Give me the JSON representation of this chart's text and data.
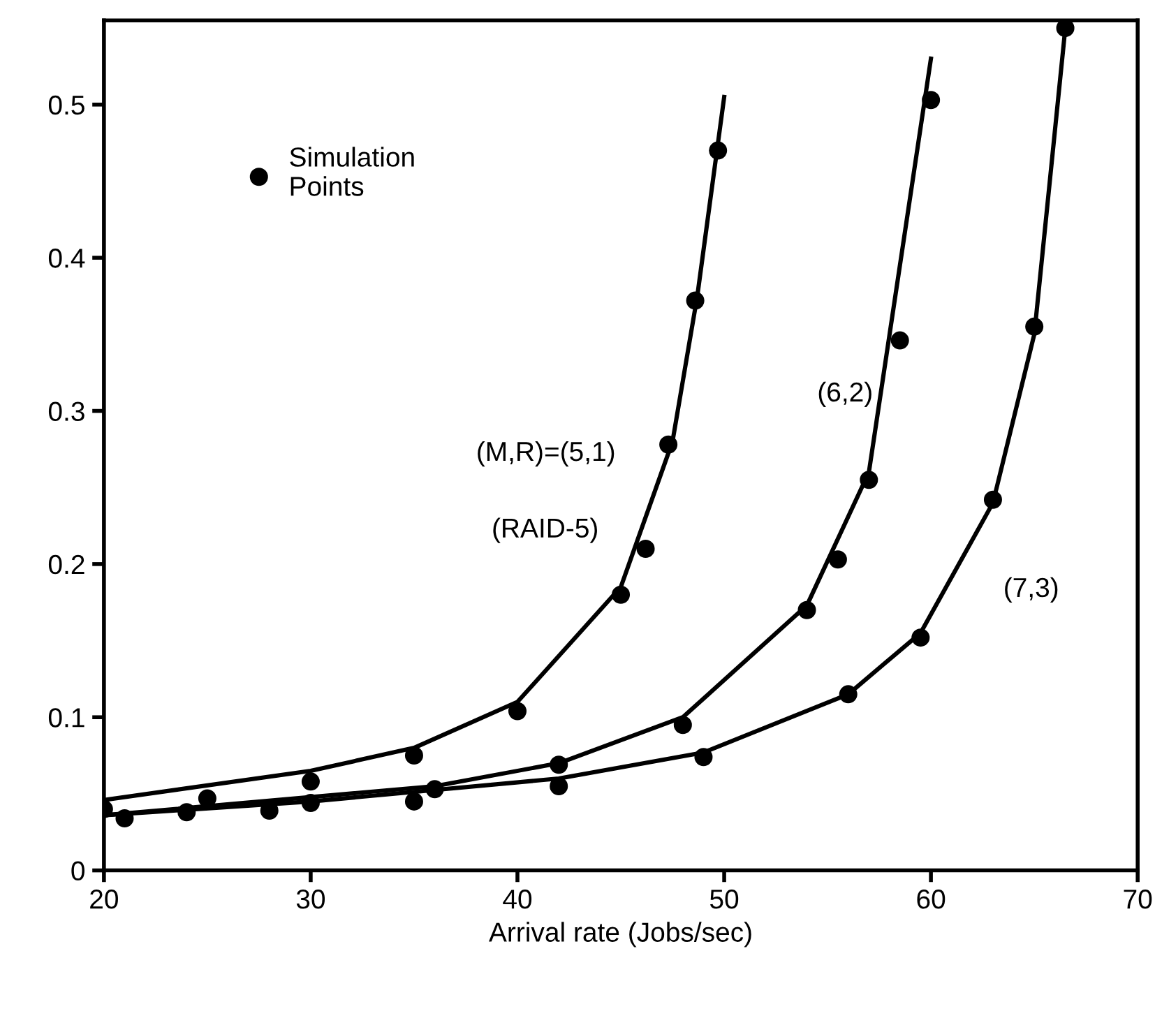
{
  "chart_data": {
    "type": "line",
    "xlabel": "Arrival rate (Jobs/sec)",
    "xlim": [
      20,
      70
    ],
    "xticks": [
      20,
      30,
      40,
      50,
      60,
      70
    ],
    "ylim": [
      0,
      0.555
    ],
    "yticks": [
      0,
      0.1,
      0.2,
      0.3,
      0.4,
      0.5
    ],
    "grid": false,
    "legend": "top left",
    "marker": "none",
    "line_style": "solid",
    "series": [
      {
        "color": "#000000",
        "x": [
          20,
          30,
          35,
          40,
          45,
          47.5,
          48.7,
          50
        ],
        "values": [
          0.046,
          0.065,
          0.08,
          0.11,
          0.185,
          0.28,
          0.375,
          0.505
        ]
      },
      {
        "color": "#000000",
        "x": [
          20,
          36,
          42,
          48,
          54,
          57,
          60
        ],
        "values": [
          0.036,
          0.055,
          0.07,
          0.1,
          0.173,
          0.26,
          0.53
        ]
      },
      {
        "color": "#000000",
        "x": [
          20,
          30,
          42,
          49,
          56,
          59.5,
          63,
          65,
          66.5
        ],
        "values": [
          0.036,
          0.045,
          0.06,
          0.077,
          0.115,
          0.155,
          0.24,
          0.35,
          0.55
        ]
      },
      {
        "type": "scatter",
        "name": "Simulation\nPoints",
        "color": "#000000",
        "marker": "circle",
        "x": [
          20,
          25,
          30,
          35,
          40,
          45,
          46.2,
          47.3,
          48.6,
          49.7,
          21,
          24,
          28,
          30,
          35,
          36,
          42,
          48,
          54,
          55.5,
          57,
          58.5,
          60,
          42,
          49,
          56,
          59.5,
          63,
          65,
          66.5
        ],
        "values": [
          0.04,
          0.047,
          0.058,
          0.075,
          0.104,
          0.18,
          0.21,
          0.278,
          0.372,
          0.47,
          0.034,
          0.038,
          0.039,
          0.044,
          0.045,
          0.053,
          0.069,
          0.095,
          0.17,
          0.203,
          0.255,
          0.346,
          0.503,
          0.055,
          0.074,
          0.115,
          0.152,
          0.242,
          0.355,
          0.55
        ]
      }
    ],
    "annotations": [
      "(M,R)=(5,1)",
      "(RAID-5)",
      "(6,2)",
      "(7,3)"
    ]
  }
}
